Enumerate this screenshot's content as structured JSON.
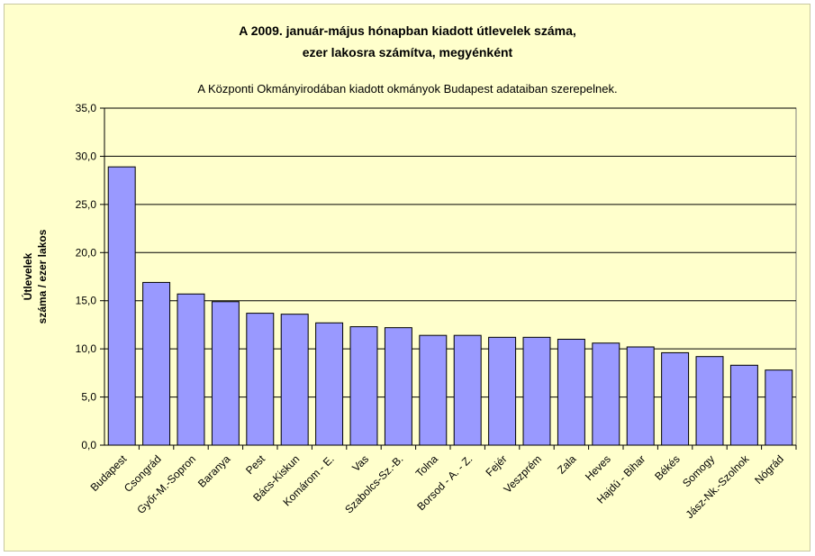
{
  "chart_data": {
    "type": "bar",
    "title_line1": "A 2009. január-május hónapban kiadott útlevelek száma,",
    "title_line2": "ezer lakosra számítva, megyénként",
    "subtitle": "A Központi Okmányirodában kiadott okmányok Budapest adataiban szerepelnek.",
    "ylabel_line1": "Útlevelek",
    "ylabel_line2": "száma / ezer lakos",
    "ylim": [
      0,
      35
    ],
    "yticks": [
      "0,0",
      "5,0",
      "10,0",
      "15,0",
      "20,0",
      "25,0",
      "30,0",
      "35,0"
    ],
    "grid": true,
    "categories": [
      "Budapest",
      "Csongrád",
      "Győr-M.-Sopron",
      "Baranya",
      "Pest",
      "Bács-Kiskun",
      "Komárom - E.",
      "Vas",
      "Szabolcs-Sz.-B.",
      "Tolna",
      "Borsod - A. - Z.",
      "Fejér",
      "Veszprém",
      "Zala",
      "Heves",
      "Hajdú - Bihar",
      "Békés",
      "Somogy",
      "Jász-Nk.-Szolnok",
      "Nógrád"
    ],
    "values": [
      28.9,
      16.9,
      15.7,
      14.9,
      13.7,
      13.6,
      12.7,
      12.3,
      12.2,
      11.4,
      11.4,
      11.2,
      11.2,
      11.0,
      10.6,
      10.2,
      9.6,
      9.2,
      8.3,
      7.8
    ],
    "colors": {
      "bar": "#9999ff",
      "bar_stroke": "#000000",
      "plot_bg": "#ffffcc",
      "grid": "#000000"
    }
  }
}
